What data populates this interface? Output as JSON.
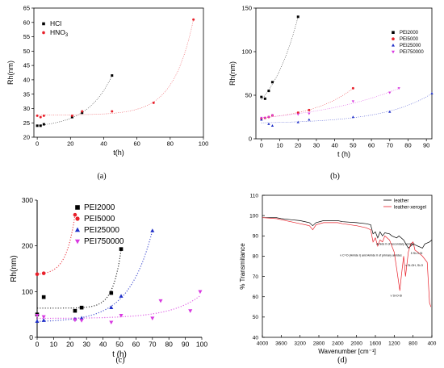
{
  "chart_data": [
    {
      "id": "a",
      "type": "scatter",
      "caption": "(a)",
      "xlabel": "t(h)",
      "ylabel": "Rh(nm)",
      "xlim": [
        -2,
        100
      ],
      "ylim": [
        20,
        65
      ],
      "xticks": [
        0,
        20,
        40,
        60,
        80,
        100
      ],
      "yticks": [
        20,
        25,
        30,
        35,
        40,
        45,
        50,
        55,
        60,
        65
      ],
      "legend": "top-left",
      "series": [
        {
          "name": "HCl",
          "color": "#000000",
          "marker": "square",
          "x": [
            0,
            2,
            4,
            21,
            27,
            45
          ],
          "y": [
            24,
            24,
            24.5,
            27,
            28.5,
            41.5
          ]
        },
        {
          "name": "HNO3",
          "color": "#e8202a",
          "marker": "circle",
          "x": [
            0,
            2,
            4,
            21,
            27,
            45,
            70,
            94
          ],
          "y": [
            27.5,
            27,
            27.5,
            27.5,
            29,
            29,
            32,
            61
          ]
        }
      ]
    },
    {
      "id": "b",
      "type": "scatter",
      "caption": "(b)",
      "xlabel": "t (h)",
      "ylabel": "Rh(nm)",
      "xlim": [
        -3,
        93
      ],
      "ylim": [
        0,
        150
      ],
      "xticks": [
        0,
        10,
        20,
        30,
        40,
        50,
        60,
        70,
        80,
        90
      ],
      "yticks": [
        0,
        50,
        100,
        150
      ],
      "legend": "top-right",
      "series": [
        {
          "name": "PEI2000",
          "color": "#000000",
          "marker": "square",
          "x": [
            0,
            2,
            4,
            6,
            20
          ],
          "y": [
            48,
            46,
            55,
            65,
            140
          ]
        },
        {
          "name": "PEI5000",
          "color": "#e8202a",
          "marker": "circle",
          "x": [
            0,
            2,
            4,
            6,
            20,
            26,
            50
          ],
          "y": [
            23,
            24,
            25,
            27,
            30,
            33,
            58
          ]
        },
        {
          "name": "PEI25000",
          "color": "#2030c8",
          "marker": "triangle",
          "x": [
            0,
            4,
            6,
            20,
            26,
            50,
            70,
            93
          ],
          "y": [
            22,
            17,
            15,
            19,
            22,
            25,
            31,
            52
          ]
        },
        {
          "name": "PEI750000",
          "color": "#d838e0",
          "marker": "triangle-down",
          "x": [
            0,
            2,
            4,
            6,
            20,
            26,
            50,
            70,
            75
          ],
          "y": [
            24,
            24,
            25,
            27,
            28,
            29,
            43,
            53,
            58
          ]
        }
      ]
    },
    {
      "id": "c",
      "type": "scatter",
      "caption": "(c)",
      "xlabel": "t (h)",
      "ylabel": "Rh(nm)",
      "xlim": [
        0,
        100
      ],
      "ylim": [
        0,
        300
      ],
      "xticks": [
        0,
        10,
        20,
        30,
        40,
        50,
        60,
        70,
        80,
        90,
        100
      ],
      "yticks": [
        0,
        100,
        200,
        300
      ],
      "legend": "top-right",
      "series": [
        {
          "name": "PEI2000",
          "color": "#000000",
          "marker": "square",
          "x": [
            0,
            4,
            23,
            27,
            45,
            51
          ],
          "y": [
            50,
            88,
            58,
            65,
            97,
            193
          ]
        },
        {
          "name": "PEI5000",
          "color": "#e8202a",
          "marker": "circle",
          "x": [
            0,
            4,
            23
          ],
          "y": [
            138,
            140,
            268
          ]
        },
        {
          "name": "PEI25000",
          "color": "#2030c8",
          "marker": "triangle",
          "x": [
            0,
            4,
            23,
            27,
            45,
            51,
            70
          ],
          "y": [
            35,
            37,
            40,
            42,
            65,
            90,
            233
          ]
        },
        {
          "name": "PEI750000",
          "color": "#d838e0",
          "marker": "triangle-down",
          "x": [
            0,
            4,
            23,
            27,
            45,
            51,
            70,
            75,
            93,
            99
          ],
          "y": [
            48,
            45,
            38,
            37,
            33,
            48,
            42,
            80,
            58,
            100
          ]
        }
      ]
    },
    {
      "id": "d",
      "type": "line",
      "caption": "(d)",
      "xlabel": "Wavenumber [cm⁻¹]",
      "ylabel": "% Transmitance",
      "xlim": [
        4000,
        400
      ],
      "ylim": [
        40,
        110
      ],
      "xticks": [
        4000,
        3600,
        3200,
        2800,
        2400,
        2000,
        1600,
        1200,
        800,
        400
      ],
      "xticklabels": [
        "4000",
        "3600",
        "3200",
        "2800",
        "2400",
        "2000",
        "1600",
        "1200",
        "800",
        "400"
      ],
      "yticks": [
        40,
        50,
        60,
        70,
        80,
        90,
        100,
        110
      ],
      "legend": "top-right",
      "series": [
        {
          "name": "leather",
          "color": "#000000",
          "x": [
            4000,
            3700,
            3600,
            3400,
            3200,
            3000,
            2930,
            2860,
            2700,
            2400,
            2300,
            2000,
            1800,
            1700,
            1650,
            1600,
            1550,
            1500,
            1450,
            1400,
            1300,
            1250,
            1150,
            1100,
            1000,
            900,
            800,
            700,
            600,
            550,
            450,
            400
          ],
          "y": [
            99,
            99,
            98.5,
            98,
            97.5,
            96.5,
            95,
            96.5,
            97.5,
            97.5,
            97,
            96.5,
            96,
            95.5,
            91,
            92,
            89,
            92,
            90,
            91.5,
            91,
            90,
            89,
            90,
            88,
            84,
            86,
            85,
            84,
            86,
            87,
            88
          ]
        },
        {
          "name": "leather-xerogel",
          "color": "#e8202a",
          "x": [
            4000,
            3700,
            3600,
            3400,
            3200,
            3000,
            2930,
            2860,
            2700,
            2400,
            2300,
            2000,
            1800,
            1700,
            1650,
            1600,
            1550,
            1500,
            1450,
            1400,
            1300,
            1250,
            1200,
            1150,
            1100,
            1080,
            1050,
            1000,
            960,
            900,
            850,
            800,
            760,
            700,
            600,
            500,
            450,
            420
          ],
          "y": [
            99,
            98.5,
            98,
            97,
            96,
            95,
            93,
            95.5,
            96.5,
            96.5,
            96,
            95,
            94,
            93,
            87,
            89,
            85,
            88,
            87,
            90,
            88,
            85,
            82,
            74,
            66,
            63,
            70,
            80,
            70,
            82,
            86,
            87,
            83,
            82,
            80,
            77,
            57,
            55
          ]
        }
      ],
      "annotations": [
        {
          "text": "Amide II of secondary amides",
          "at": [
            1580,
            85.5
          ]
        },
        {
          "text": "v C=O (Amide I) and Amide II of primary amides",
          "at": [
            2350,
            80
          ]
        },
        {
          "text": "δ Si-O-Si",
          "at": [
            850,
            81
          ]
        },
        {
          "text": "v Si-OH, Si-O",
          "at": [
            960,
            75
          ]
        },
        {
          "text": "v Si-O-Si",
          "at": [
            1280,
            60
          ]
        }
      ]
    }
  ]
}
